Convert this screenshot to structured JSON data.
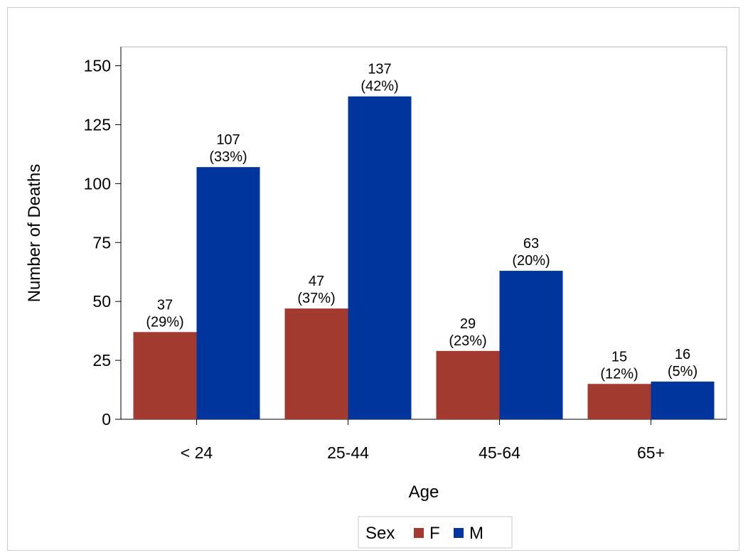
{
  "chart_data": {
    "type": "bar",
    "categories": [
      "< 24",
      "25-44",
      "45-64",
      "65+"
    ],
    "series": [
      {
        "name": "F",
        "color": "#a23a2f",
        "values": [
          37,
          47,
          29,
          15
        ],
        "percent_labels": [
          "(29%)",
          "(37%)",
          "(23%)",
          "(12%)"
        ]
      },
      {
        "name": "M",
        "color": "#00359e",
        "values": [
          107,
          137,
          63,
          16
        ],
        "percent_labels": [
          "(33%)",
          "(42%)",
          "(20%)",
          "(5%)"
        ]
      }
    ],
    "xlabel": "Age",
    "ylabel": "Number of Deaths",
    "ylim": [
      0,
      150
    ],
    "yticks": [
      0,
      25,
      50,
      75,
      100,
      125,
      150
    ],
    "grid": false,
    "legend": {
      "title": "Sex",
      "placement": "bottom-center"
    }
  }
}
